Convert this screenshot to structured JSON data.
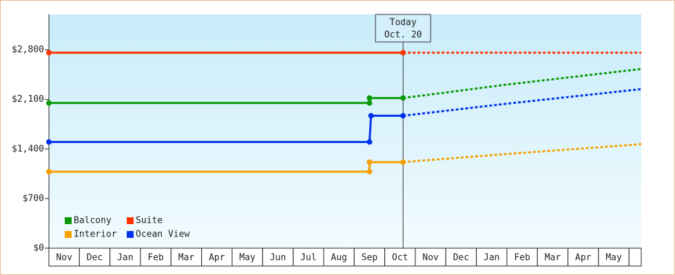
{
  "chart_data": {
    "type": "line",
    "categories": [
      "Nov",
      "Dec",
      "Jan",
      "Feb",
      "Mar",
      "Apr",
      "May",
      "Jun",
      "Jul",
      "Aug",
      "Sep",
      "Oct",
      "Nov",
      "Dec",
      "Jan",
      "Feb",
      "Mar",
      "Apr",
      "May"
    ],
    "xlim": [
      0,
      19.4
    ],
    "ylim": [
      0,
      3300
    ],
    "yticks": [
      {
        "value": 0,
        "label": "$0"
      },
      {
        "value": 700,
        "label": "$700"
      },
      {
        "value": 1400,
        "label": "$1,400"
      },
      {
        "value": 2100,
        "label": "$2,100"
      },
      {
        "value": 2800,
        "label": "$2,800"
      }
    ],
    "today": {
      "x": 11.6,
      "label": [
        "Today",
        "Oct. 20"
      ]
    },
    "series": [
      {
        "name": "Balcony",
        "color": "#0a9a0a",
        "x": [
          0,
          10.5,
          10.5,
          11.6
        ],
        "values": [
          2050,
          2050,
          2120,
          2120
        ],
        "forecast_x": [
          11.6,
          15,
          19.4
        ],
        "forecast_values": [
          2120,
          2310,
          2530
        ]
      },
      {
        "name": "Suite",
        "color": "#ff3300",
        "x": [
          0,
          11.6
        ],
        "values": [
          2760,
          2760
        ],
        "forecast_x": [
          11.6,
          19.4
        ],
        "forecast_values": [
          2760,
          2760
        ]
      },
      {
        "name": "Interior",
        "color": "#f5a000",
        "x": [
          0,
          10.5,
          10.5,
          11.6
        ],
        "values": [
          1080,
          1080,
          1215,
          1215
        ],
        "forecast_x": [
          11.6,
          15,
          19.4
        ],
        "forecast_values": [
          1215,
          1330,
          1468
        ]
      },
      {
        "name": "Ocean View",
        "color": "#0033ee",
        "x": [
          0,
          10.5,
          10.55,
          11.6
        ],
        "values": [
          1500,
          1500,
          1870,
          1870
        ],
        "forecast_x": [
          11.6,
          15,
          19.4
        ],
        "forecast_values": [
          1870,
          2040,
          2246
        ]
      }
    ]
  }
}
